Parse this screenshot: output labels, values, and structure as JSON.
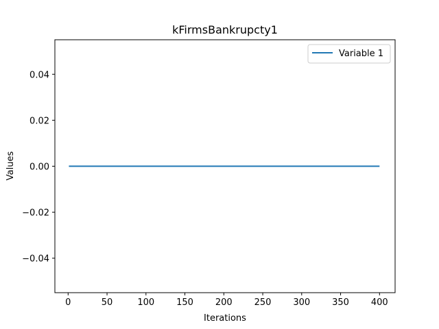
{
  "chart_data": {
    "type": "line",
    "title": "kFirmsBankrupcty1",
    "xlabel": "Iterations",
    "ylabel": "Values",
    "xlim": [
      -17,
      420
    ],
    "ylim": [
      -0.055,
      0.055
    ],
    "xticks": [
      0,
      50,
      100,
      150,
      200,
      250,
      300,
      350,
      400
    ],
    "xtick_labels": [
      "0",
      "50",
      "100",
      "150",
      "200",
      "250",
      "300",
      "350",
      "400"
    ],
    "yticks": [
      -0.04,
      -0.02,
      0.0,
      0.02,
      0.04
    ],
    "ytick_labels": [
      "−0.04",
      "−0.02",
      "0.00",
      "0.02",
      "0.04"
    ],
    "grid": false,
    "legend_position": "upper right",
    "series": [
      {
        "name": "Variable 1",
        "color": "#1f77b4",
        "x": [
          1,
          400
        ],
        "y": [
          0,
          0
        ]
      }
    ]
  }
}
